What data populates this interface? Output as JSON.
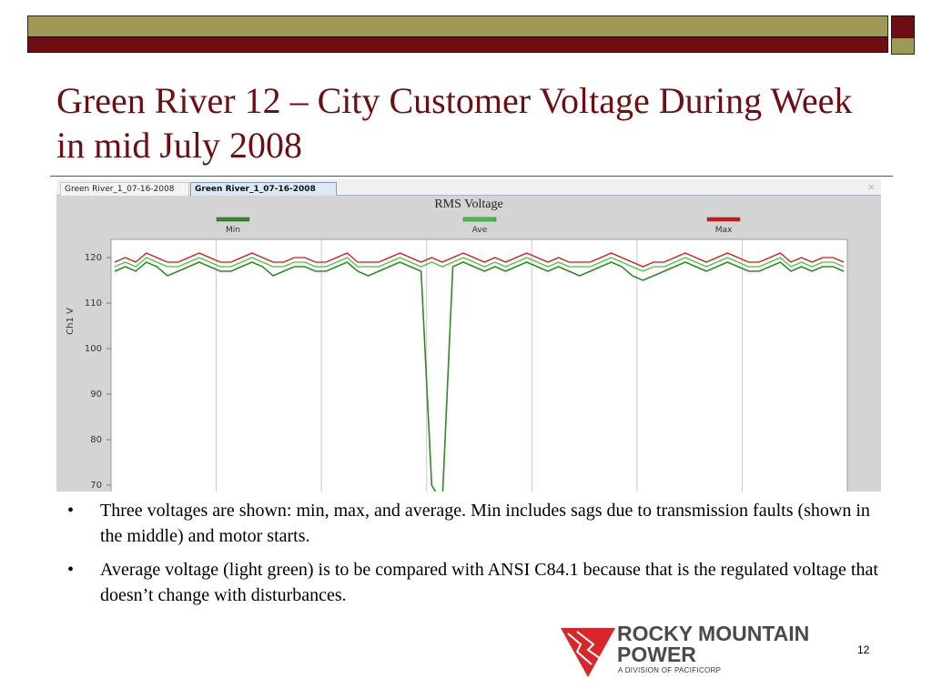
{
  "slide": {
    "title": "Green River 12 – City Customer Voltage During Week in mid July 2008",
    "page_number": "12"
  },
  "colors": {
    "olive": "#9e9a55",
    "maroon": "#6e0d12",
    "series_min": "#2e8b22",
    "series_ave": "#40c840",
    "series_max": "#e01010"
  },
  "window": {
    "tabs": [
      {
        "label": "Green River_1_07-16-2008",
        "active": false
      },
      {
        "label": "Green River_1_07-16-2008",
        "active": true
      }
    ],
    "close_icon": "close-icon"
  },
  "chart_data": {
    "type": "line",
    "title": "RMS Voltage",
    "ylabel": "Ch1 V",
    "xlabel": "",
    "ylim": [
      66,
      124
    ],
    "yticks": [
      120,
      110,
      100,
      90,
      80,
      70
    ],
    "grid": true,
    "legend_position": "top",
    "series": [
      {
        "name": "Min",
        "color": "#2e8b22",
        "values": [
          117,
          118,
          117,
          119,
          118,
          116,
          117,
          118,
          119,
          118,
          117,
          117,
          118,
          119,
          118,
          116,
          117,
          118,
          118,
          117,
          117,
          118,
          119,
          117,
          116,
          117,
          118,
          119,
          118,
          117,
          70,
          66,
          118,
          119,
          118,
          117,
          118,
          117,
          118,
          119,
          118,
          117,
          118,
          117,
          116,
          117,
          118,
          119,
          118,
          116,
          115,
          116,
          117,
          118,
          119,
          118,
          117,
          118,
          119,
          118,
          117,
          117,
          118,
          119,
          117,
          118,
          117,
          118,
          118,
          117
        ]
      },
      {
        "name": "Ave",
        "color": "#40c840",
        "values": [
          118,
          119,
          118,
          120,
          119,
          118,
          118,
          119,
          120,
          119,
          118,
          118,
          119,
          120,
          119,
          118,
          118,
          119,
          119,
          118,
          118,
          119,
          120,
          118,
          118,
          118,
          119,
          120,
          119,
          118,
          119,
          118,
          119,
          120,
          119,
          118,
          119,
          118,
          119,
          120,
          119,
          118,
          119,
          118,
          118,
          118,
          119,
          120,
          119,
          118,
          117,
          118,
          118,
          119,
          120,
          119,
          118,
          119,
          120,
          119,
          118,
          118,
          119,
          120,
          118,
          119,
          118,
          119,
          119,
          118
        ]
      },
      {
        "name": "Max",
        "color": "#e01010",
        "values": [
          119,
          120,
          119,
          121,
          120,
          119,
          119,
          120,
          121,
          120,
          119,
          119,
          120,
          121,
          120,
          119,
          119,
          120,
          120,
          119,
          119,
          120,
          121,
          119,
          119,
          119,
          120,
          121,
          120,
          119,
          120,
          119,
          120,
          121,
          120,
          119,
          120,
          119,
          120,
          121,
          120,
          119,
          120,
          119,
          119,
          119,
          120,
          121,
          120,
          119,
          118,
          119,
          119,
          120,
          121,
          120,
          119,
          120,
          121,
          120,
          119,
          119,
          120,
          121,
          119,
          120,
          119,
          120,
          120,
          119
        ]
      }
    ]
  },
  "bullets": [
    {
      "marker": "•",
      "text": "Three voltages are shown: min, max, and average.  Min includes sags due to transmission faults (shown in the middle) and motor starts."
    },
    {
      "marker": "•",
      "text": "Average voltage (light green) is to be compared with ANSI C84.1 because that is the regulated voltage that doesn’t change with disturbances."
    }
  ],
  "logo": {
    "line1": "ROCKY MOUNTAIN",
    "line2": "POWER",
    "line3": "A DIVISION OF PACIFICORP",
    "icon": "rocky-mountain-power-logo-icon"
  }
}
